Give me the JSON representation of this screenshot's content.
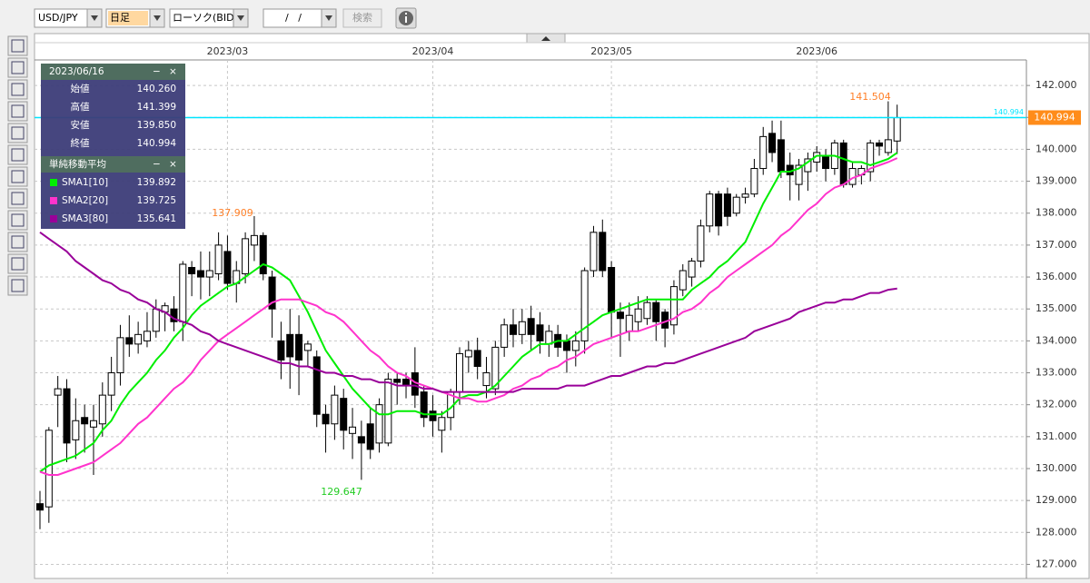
{
  "toolbar": {
    "symbol": "USD/JPY",
    "timeframe": "日足",
    "chart_type": "ローソク(BID)",
    "date_field": "/   /",
    "search": "検索"
  },
  "ohlc_panel": {
    "date": "2023/06/16",
    "minimize": "−",
    "close_button": "×",
    "rows": [
      {
        "label": "始値",
        "value": "140.260"
      },
      {
        "label": "高値",
        "value": "141.399"
      },
      {
        "label": "安値",
        "value": "139.850"
      },
      {
        "label": "終値",
        "value": "140.994"
      }
    ]
  },
  "sma_panel": {
    "title": "単純移動平均",
    "minimize": "−",
    "close_button": "×"
  },
  "chart_data": {
    "type": "candlestick",
    "categories": [
      null,
      null,
      null,
      null,
      null,
      null,
      null,
      null,
      null,
      null,
      null,
      null,
      null,
      null,
      null,
      null,
      null,
      null,
      null,
      null,
      null,
      "2023/03",
      null,
      null,
      null,
      null,
      null,
      null,
      null,
      null,
      null,
      null,
      null,
      null,
      null,
      null,
      null,
      null,
      null,
      null,
      null,
      null,
      null,
      null,
      "2023/04",
      null,
      null,
      null,
      null,
      null,
      null,
      null,
      null,
      null,
      null,
      null,
      null,
      null,
      null,
      null,
      null,
      null,
      null,
      null,
      "2023/05",
      null,
      null,
      null,
      null,
      null,
      null,
      null,
      null,
      null,
      null,
      null,
      null,
      null,
      null,
      null,
      null,
      null,
      null,
      null,
      null,
      null,
      null,
      "2023/06",
      null,
      null,
      null,
      null,
      null,
      null,
      null,
      null,
      null
    ],
    "open": [
      128.9,
      128.8,
      132.3,
      132.5,
      130.9,
      131.6,
      131.3,
      131.4,
      132.3,
      133.0,
      134.1,
      133.9,
      134.0,
      134.3,
      134.9,
      135.0,
      134.6,
      136.3,
      136.2,
      136.0,
      136.1,
      136.8,
      135.8,
      136.1,
      137.0,
      137.3,
      136.0,
      134.0,
      134.2,
      134.2,
      133.7,
      133.5,
      131.7,
      131.4,
      132.2,
      131.1,
      131.0,
      131.4,
      130.8,
      130.8,
      132.8,
      132.8,
      133.0,
      132.4,
      131.8,
      131.2,
      131.6,
      132.4,
      133.5,
      133.7,
      132.6,
      132.5,
      133.8,
      134.5,
      134.2,
      134.7,
      134.5,
      133.9,
      134.2,
      134.0,
      133.7,
      134.0,
      136.2,
      137.4,
      136.3,
      134.9,
      134.3,
      134.6,
      134.7,
      135.2,
      134.9,
      134.5,
      135.6,
      136.0,
      136.5,
      137.6,
      138.6,
      138.6,
      138.0,
      138.5,
      138.6,
      139.4,
      140.5,
      140.3,
      139.5,
      138.9,
      139.3,
      139.6,
      139.8,
      139.4,
      140.2,
      138.9,
      139.2,
      139.3,
      140.2,
      139.9,
      140.26
    ],
    "high": [
      129.3,
      131.3,
      132.9,
      132.8,
      132.2,
      132.0,
      132.0,
      132.7,
      133.5,
      134.5,
      134.8,
      134.6,
      134.9,
      135.3,
      135.2,
      135.4,
      136.5,
      136.5,
      136.8,
      136.8,
      137.4,
      137.3,
      136.5,
      137.4,
      137.909,
      137.4,
      136.2,
      134.6,
      135.0,
      134.8,
      134.0,
      133.7,
      132.0,
      132.6,
      132.5,
      131.9,
      131.5,
      131.9,
      132.2,
      133.0,
      133.0,
      133.0,
      133.8,
      132.6,
      132.3,
      131.8,
      132.5,
      133.8,
      134.0,
      134.1,
      133.5,
      134.0,
      134.7,
      135.0,
      135.0,
      135.1,
      134.9,
      134.5,
      134.5,
      134.2,
      134.3,
      136.3,
      137.6,
      137.8,
      136.5,
      135.2,
      135.2,
      135.4,
      135.4,
      135.3,
      135.0,
      135.9,
      136.4,
      136.6,
      137.8,
      138.7,
      138.7,
      138.8,
      138.6,
      138.8,
      139.7,
      140.7,
      140.9,
      140.9,
      139.9,
      139.7,
      139.9,
      140.1,
      140.0,
      140.3,
      140.3,
      139.6,
      139.5,
      140.3,
      140.3,
      141.504,
      141.399
    ],
    "low": [
      128.1,
      128.3,
      131.3,
      130.2,
      130.3,
      130.5,
      129.8,
      131.0,
      131.8,
      132.6,
      133.5,
      133.6,
      133.8,
      134.1,
      134.3,
      134.3,
      134.0,
      135.4,
      135.3,
      135.4,
      135.9,
      135.6,
      135.2,
      135.8,
      136.5,
      135.9,
      134.1,
      132.8,
      132.5,
      132.3,
      133.2,
      131.3,
      130.5,
      130.9,
      130.6,
      130.3,
      129.647,
      130.3,
      130.5,
      130.7,
      132.0,
      132.2,
      131.9,
      131.3,
      131.0,
      130.5,
      131.2,
      132.0,
      133.0,
      132.8,
      132.2,
      132.3,
      133.5,
      133.8,
      133.9,
      133.7,
      133.6,
      133.5,
      133.5,
      133.0,
      133.2,
      133.6,
      136.0,
      136.0,
      134.1,
      133.5,
      134.0,
      134.3,
      134.5,
      134.0,
      133.8,
      134.2,
      135.4,
      135.7,
      136.3,
      137.4,
      137.3,
      137.6,
      137.9,
      138.3,
      138.5,
      139.2,
      139.6,
      139.1,
      138.4,
      138.4,
      138.7,
      139.3,
      139.0,
      139.2,
      138.8,
      138.8,
      138.9,
      139.0,
      139.8,
      139.8,
      139.85
    ],
    "close": [
      128.7,
      131.2,
      132.5,
      130.8,
      131.5,
      131.4,
      131.5,
      132.3,
      133.0,
      134.1,
      133.9,
      134.2,
      134.3,
      135.0,
      135.1,
      134.6,
      136.4,
      136.1,
      136.0,
      136.2,
      137.0,
      135.8,
      136.2,
      137.2,
      137.3,
      136.1,
      135.0,
      133.4,
      133.5,
      133.4,
      133.9,
      131.7,
      131.4,
      132.3,
      131.2,
      131.3,
      130.8,
      130.6,
      132.0,
      132.8,
      132.7,
      132.6,
      132.3,
      131.6,
      131.5,
      131.6,
      132.4,
      133.6,
      133.7,
      133.2,
      133.0,
      133.8,
      134.5,
      134.2,
      134.6,
      134.2,
      134.0,
      134.3,
      133.8,
      133.7,
      134.0,
      136.2,
      137.4,
      136.2,
      134.9,
      134.7,
      134.8,
      135.0,
      135.2,
      134.6,
      134.4,
      135.7,
      136.2,
      136.5,
      137.6,
      138.6,
      137.6,
      137.9,
      138.5,
      138.6,
      139.4,
      140.4,
      139.9,
      139.3,
      139.2,
      139.5,
      139.7,
      139.9,
      139.4,
      140.2,
      138.9,
      139.4,
      139.4,
      140.2,
      140.1,
      140.3,
      140.994
    ],
    "series": [
      {
        "name": "SMA1[10]",
        "color": "#00ee00",
        "values": [
          129.9,
          130.1,
          130.2,
          130.3,
          130.4,
          130.6,
          130.8,
          131.2,
          131.5,
          132.0,
          132.4,
          132.7,
          133.0,
          133.4,
          133.7,
          134.1,
          134.4,
          134.8,
          135.1,
          135.3,
          135.5,
          135.7,
          135.8,
          136.0,
          136.2,
          136.4,
          136.3,
          136.1,
          135.9,
          135.4,
          134.9,
          134.3,
          133.7,
          133.3,
          132.9,
          132.5,
          132.2,
          131.9,
          131.7,
          131.7,
          131.8,
          131.8,
          131.8,
          131.7,
          131.7,
          131.7,
          131.9,
          132.2,
          132.3,
          132.3,
          132.4,
          132.6,
          132.9,
          133.2,
          133.5,
          133.7,
          133.9,
          133.9,
          134.0,
          134.0,
          134.2,
          134.4,
          134.6,
          134.8,
          134.9,
          135.0,
          135.1,
          135.2,
          135.3,
          135.3,
          135.3,
          135.3,
          135.3,
          135.6,
          135.8,
          136.0,
          136.3,
          136.5,
          136.8,
          137.1,
          137.7,
          138.3,
          138.8,
          139.3,
          139.3,
          139.4,
          139.6,
          139.8,
          139.8,
          139.8,
          139.7,
          139.6,
          139.6,
          139.5,
          139.6,
          139.7,
          139.892
        ]
      },
      {
        "name": "SMA2[20]",
        "color": "#ff33cc",
        "values": [
          129.9,
          129.8,
          129.8,
          129.9,
          130.0,
          130.1,
          130.2,
          130.4,
          130.6,
          130.8,
          131.1,
          131.4,
          131.6,
          131.9,
          132.2,
          132.5,
          132.7,
          133.0,
          133.4,
          133.7,
          134.0,
          134.2,
          134.4,
          134.6,
          134.8,
          135.0,
          135.2,
          135.3,
          135.3,
          135.3,
          135.2,
          135.1,
          134.9,
          134.8,
          134.6,
          134.3,
          134.0,
          133.7,
          133.5,
          133.2,
          133.0,
          132.9,
          132.7,
          132.6,
          132.5,
          132.4,
          132.3,
          132.2,
          132.2,
          132.1,
          132.1,
          132.2,
          132.3,
          132.5,
          132.6,
          132.8,
          132.9,
          133.1,
          133.2,
          133.4,
          133.5,
          133.7,
          133.9,
          134.0,
          134.1,
          134.2,
          134.3,
          134.3,
          134.4,
          134.5,
          134.6,
          134.7,
          134.9,
          135.0,
          135.2,
          135.5,
          135.7,
          136.0,
          136.2,
          136.4,
          136.6,
          136.8,
          137.0,
          137.3,
          137.5,
          137.8,
          138.1,
          138.3,
          138.6,
          138.8,
          138.9,
          139.1,
          139.2,
          139.4,
          139.5,
          139.6,
          139.725
        ]
      },
      {
        "name": "SMA3[80]",
        "color": "#990099",
        "values": [
          137.4,
          137.2,
          137.0,
          136.8,
          136.5,
          136.3,
          136.1,
          135.9,
          135.8,
          135.6,
          135.5,
          135.3,
          135.2,
          135.0,
          134.9,
          134.7,
          134.6,
          134.5,
          134.3,
          134.2,
          134.0,
          133.9,
          133.8,
          133.7,
          133.6,
          133.5,
          133.4,
          133.3,
          133.3,
          133.2,
          133.2,
          133.1,
          133.0,
          133.0,
          132.9,
          132.9,
          132.8,
          132.8,
          132.7,
          132.7,
          132.6,
          132.6,
          132.6,
          132.5,
          132.5,
          132.4,
          132.4,
          132.4,
          132.4,
          132.4,
          132.4,
          132.4,
          132.4,
          132.4,
          132.5,
          132.5,
          132.5,
          132.5,
          132.5,
          132.6,
          132.6,
          132.6,
          132.7,
          132.8,
          132.9,
          132.9,
          133.0,
          133.1,
          133.2,
          133.2,
          133.3,
          133.3,
          133.4,
          133.5,
          133.6,
          133.7,
          133.8,
          133.9,
          134.0,
          134.1,
          134.3,
          134.4,
          134.5,
          134.6,
          134.7,
          134.9,
          135.0,
          135.1,
          135.2,
          135.2,
          135.3,
          135.3,
          135.4,
          135.5,
          135.5,
          135.6,
          135.641
        ]
      }
    ],
    "ylim": [
      126.7,
      142.8
    ],
    "yticks": [
      {
        "value": 127,
        "label": "127.000"
      },
      {
        "value": 128,
        "label": "128.000"
      },
      {
        "value": 129,
        "label": "129.000"
      },
      {
        "value": 130,
        "label": "130.000"
      },
      {
        "value": 131,
        "label": "131.000"
      },
      {
        "value": 132,
        "label": "132.000"
      },
      {
        "value": 133,
        "label": "133.000"
      },
      {
        "value": 134,
        "label": "134.000"
      },
      {
        "value": 135,
        "label": "135.000"
      },
      {
        "value": 136,
        "label": "136.000"
      },
      {
        "value": 137,
        "label": "137.000"
      },
      {
        "value": 138,
        "label": "138.000"
      },
      {
        "value": 139,
        "label": "139.000"
      },
      {
        "value": 140,
        "label": "140.000"
      },
      {
        "value": 141,
        "label": "141.000"
      },
      {
        "value": 142,
        "label": "142.000"
      }
    ],
    "grid": true,
    "price_line": {
      "value": 140.994,
      "color": "#00e5ff",
      "box_color": "#ff8c1a"
    },
    "annotations": [
      {
        "text": "141.504",
        "color": "#ff7f27"
      },
      {
        "text": "137.909",
        "color": "#ff7f27"
      },
      {
        "text": "129.647",
        "color": "#22cc22"
      }
    ]
  }
}
